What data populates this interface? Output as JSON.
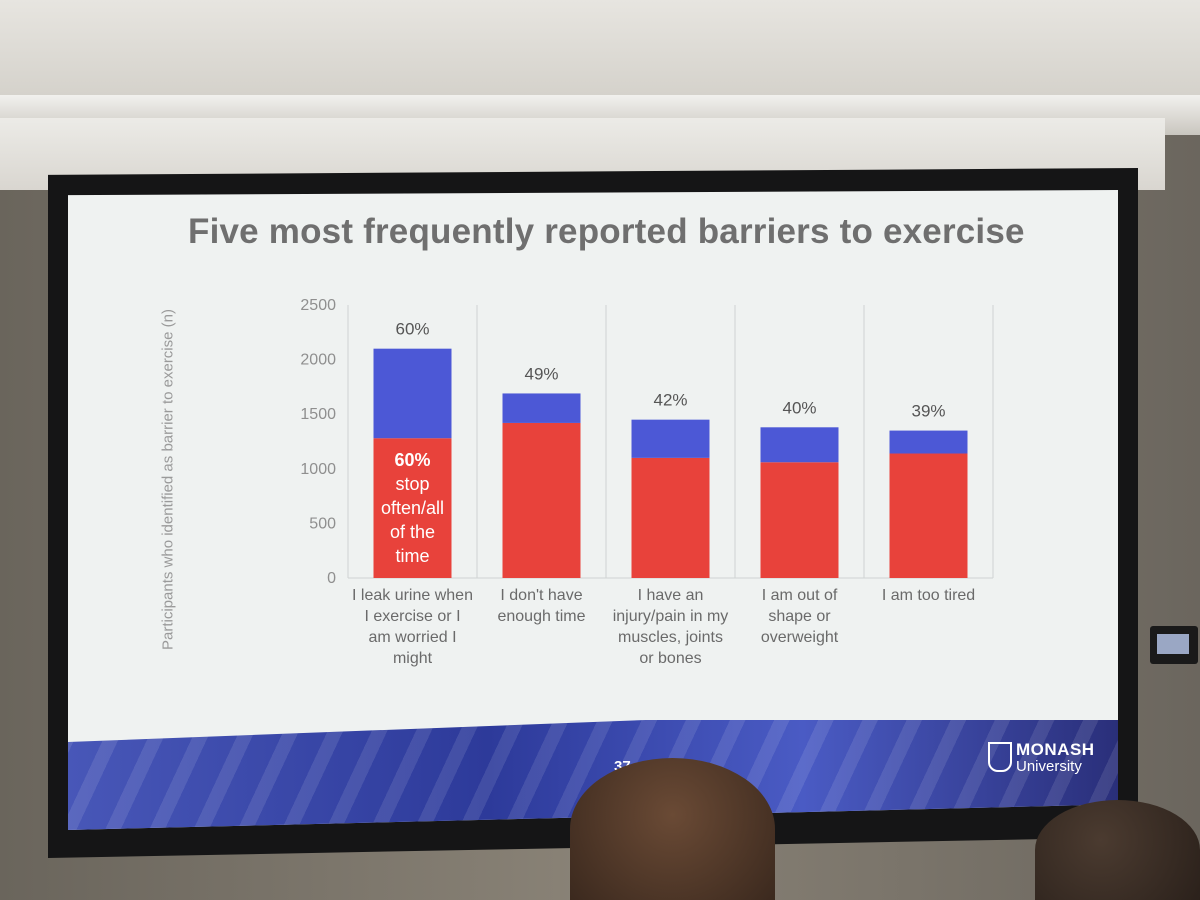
{
  "slide": {
    "title": "Five most frequently reported barriers to exercise",
    "page_number": "37",
    "logo": {
      "name": "MONASH",
      "sub": "University"
    }
  },
  "colors": {
    "stop_segment": "#e8423b",
    "remainder_segment": "#4c58d6",
    "axis_text": "#8f8f8f",
    "gridline": "#cfd3d2"
  },
  "chart_data": {
    "type": "bar",
    "stacked": true,
    "title": "",
    "ylabel": "Participants who identified as barrier to exercise (n)",
    "xlabel": "",
    "ylim": [
      0,
      2500
    ],
    "yticks": [
      0,
      500,
      1000,
      1500,
      2000,
      2500
    ],
    "categories": [
      [
        "I leak urine when",
        "I exercise or I",
        "am worried I",
        "might"
      ],
      [
        "I don't have",
        "enough time"
      ],
      [
        "I have an",
        "injury/pain in my",
        "muscles, joints",
        "or bones"
      ],
      [
        "I am out of",
        "shape or",
        "overweight"
      ],
      [
        "I am too tired"
      ]
    ],
    "series": [
      {
        "values": [
          1280,
          1420,
          1100,
          1060,
          1140
        ]
      },
      {
        "values": [
          820,
          270,
          350,
          320,
          210
        ]
      }
    ],
    "totals": [
      2100,
      1690,
      1450,
      1380,
      1350
    ],
    "percent_labels": [
      "60%",
      "49%",
      "42%",
      "40%",
      "39%"
    ],
    "inner_annotation": {
      "bar_index": 0,
      "lines": [
        "60%",
        "stop",
        "often/all",
        "of the",
        "time"
      ]
    },
    "grid": "vertical-separators",
    "legend": "none"
  }
}
